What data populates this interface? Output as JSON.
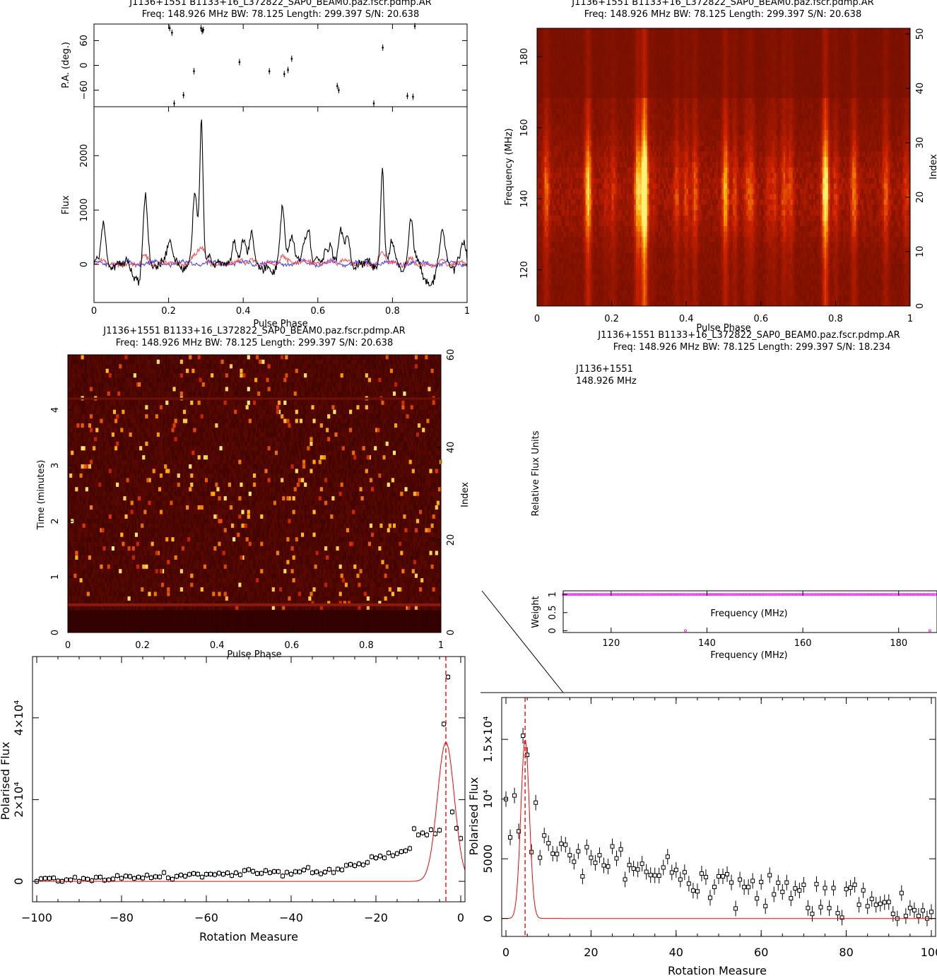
{
  "panels": {
    "profile": {
      "title": "J1136+1551  B1133+16_L372822_SAP0_BEAM0.paz.fscr.pdmp.AR",
      "subtitle": "Freq: 148.926 MHz BW: 78.125 Length: 299.397 S/N: 20.638",
      "pa_label": "P.A. (deg.)",
      "flux_label": "Flux",
      "xlabel": "Pulse Phase"
    },
    "freq_phase": {
      "title": "J1136+1551  B1133+16_L372822_SAP0_BEAM0.paz.fscr.pdmp.AR",
      "subtitle": "Freq: 148.926 MHz BW: 78.125 Length: 299.397 S/N: 20.638",
      "ylabel": "Frequency (MHz)",
      "y2label": "Index",
      "xlabel": "Pulse Phase"
    },
    "time_phase": {
      "title": "J1136+1551  B1133+16_L372822_SAP0_BEAM0.paz.fscr.pdmp.AR",
      "subtitle": "Freq: 148.926 MHz BW: 78.125 Length: 299.397 S/N: 20.638",
      "ylabel": "Time (minutes)",
      "y2label": "Index",
      "xlabel": "Pulse Phase"
    },
    "spectrum": {
      "title": "J1136+1551  B1133+16_L372822_SAP0_BEAM0.paz.fscr.pdmp.AR",
      "subtitle": "Freq: 148.926 MHz BW: 78.125 Length: 299.397 S/N: 18.234",
      "source": "J1136+1551",
      "freq": "148.926 MHz",
      "ylabel": "Relative Flux Units",
      "weight_label": "Weight",
      "inner_xlabel": "Frequency (MHz)",
      "xlabel": "Frequency (MHz)"
    },
    "rm_left": {
      "ylabel": "Polarised Flux",
      "xlabel": "Rotation Measure"
    },
    "rm_right": {
      "ylabel": "Polarised Flux",
      "xlabel": "Rotation Measure"
    }
  },
  "colors": {
    "heat_low": "#3a0000",
    "heat_mid": "#a02000",
    "heat_high": "#ffe060",
    "stokes_l": "#ff4040",
    "stokes_v": "#3030ff",
    "fit": "#ff0000",
    "weights": "#ff00ff"
  },
  "chart_data": [
    {
      "id": "pa",
      "type": "scatter",
      "xlim": [
        0,
        1
      ],
      "ylim": [
        -100,
        100
      ],
      "yticks": [
        -60,
        0,
        60
      ],
      "points": [
        [
          0.203,
          90
        ],
        [
          0.209,
          79
        ],
        [
          0.215,
          -92
        ],
        [
          0.24,
          -72
        ],
        [
          0.268,
          -14
        ],
        [
          0.287,
          90
        ],
        [
          0.29,
          83
        ],
        [
          0.293,
          86
        ],
        [
          0.39,
          8
        ],
        [
          0.47,
          -14
        ],
        [
          0.51,
          -21
        ],
        [
          0.52,
          -11
        ],
        [
          0.53,
          16
        ],
        [
          0.652,
          -50
        ],
        [
          0.656,
          -60
        ],
        [
          0.75,
          -92
        ],
        [
          0.774,
          43
        ],
        [
          0.84,
          -74
        ],
        [
          0.855,
          -76
        ],
        [
          0.86,
          95
        ]
      ]
    },
    {
      "id": "flux",
      "type": "line",
      "xlim": [
        0,
        1
      ],
      "ylim": [
        -700,
        2900
      ],
      "yticks": [
        0,
        1000,
        2000
      ],
      "xticks": [
        0,
        0.2,
        0.4,
        0.6,
        0.8,
        1
      ],
      "series": [
        {
          "peaks": [
            [
              0.025,
              700
            ],
            [
              0.137,
              1300
            ],
            [
              0.185,
              180
            ],
            [
              0.204,
              400
            ],
            [
              0.27,
              1300
            ],
            [
              0.288,
              2650
            ],
            [
              0.31,
              200
            ],
            [
              0.375,
              520
            ],
            [
              0.4,
              460
            ],
            [
              0.423,
              650
            ],
            [
              0.505,
              1150
            ],
            [
              0.53,
              500
            ],
            [
              0.562,
              420
            ],
            [
              0.575,
              560
            ],
            [
              0.62,
              260
            ],
            [
              0.635,
              400
            ],
            [
              0.662,
              600
            ],
            [
              0.68,
              520
            ],
            [
              0.773,
              1800
            ],
            [
              0.8,
              400
            ],
            [
              0.85,
              800
            ],
            [
              0.935,
              650
            ],
            [
              0.99,
              400
            ]
          ],
          "dips": [
            [
              0.12,
              -300
            ],
            [
              0.475,
              -160
            ],
            [
              0.9,
              -400
            ]
          ]
        }
      ]
    },
    {
      "id": "freq_phase",
      "type": "heatmap",
      "xlim": [
        0,
        1
      ],
      "ylim": [
        109.8,
        188
      ],
      "xticks": [
        0,
        0.2,
        0.4,
        0.6,
        0.8,
        1
      ],
      "yticks": [
        120,
        140,
        160,
        180
      ],
      "y2ticks": [
        0,
        10,
        20,
        30,
        40,
        50
      ]
    },
    {
      "id": "time_phase",
      "type": "heatmap",
      "xlim": [
        0,
        1
      ],
      "ylim": [
        0,
        4.99
      ],
      "xticks": [
        0,
        0.2,
        0.4,
        0.6,
        0.8,
        1
      ],
      "yticks": [
        0,
        1,
        2,
        3,
        4
      ],
      "y2ticks": [
        0,
        20,
        40,
        60
      ]
    },
    {
      "id": "weights",
      "type": "scatter",
      "xlim": [
        110,
        188
      ],
      "ylim": [
        -0.05,
        1.1
      ],
      "xticks": [
        120,
        140,
        160,
        180
      ],
      "yticks": [
        0,
        0.5,
        1
      ],
      "value_all": 1,
      "zeros": [
        135.5,
        186.5
      ]
    },
    {
      "id": "rm_left",
      "type": "scatter",
      "xlim": [
        -101,
        1
      ],
      "ylim": [
        -5000,
        55000
      ],
      "xticks": [
        -100,
        -80,
        -60,
        -40,
        -20,
        0
      ],
      "yticks": [
        0,
        20000,
        40000
      ],
      "ytick_labels": [
        "0",
        "2×10⁴",
        "4×10⁴"
      ],
      "peak_rm": -3.5,
      "fit_amp": 34000,
      "fit_sigma": 2.0
    },
    {
      "id": "rm_right",
      "type": "scatter",
      "xlim": [
        -1,
        101
      ],
      "ylim": [
        -1500,
        18500
      ],
      "xticks": [
        0,
        20,
        40,
        60,
        80,
        100
      ],
      "yticks": [
        0,
        5000,
        10000,
        15000
      ],
      "ytick_labels": [
        "0",
        "5000",
        "10⁴",
        "1.5×10⁴"
      ],
      "peak_rm": 4.5,
      "fit_amp": 15000,
      "fit_sigma": 1.0
    }
  ]
}
